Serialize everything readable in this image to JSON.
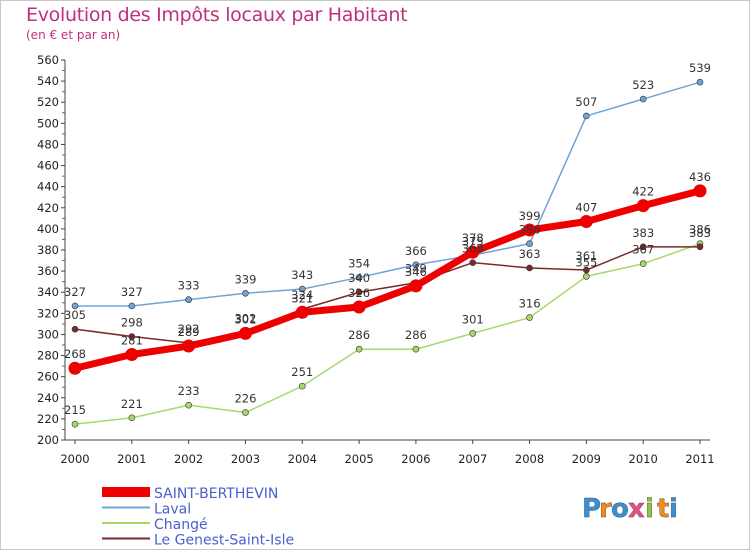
{
  "chart_data": {
    "type": "line",
    "title": "Evolution des Impôts locaux par Habitant",
    "subtitle": "(en € et par an)",
    "xlabel": "",
    "ylabel": "",
    "x": [
      "2000",
      "2001",
      "2002",
      "2003",
      "2004",
      "2005",
      "2006",
      "2007",
      "2008",
      "2009",
      "2010",
      "2011"
    ],
    "ylim": [
      200,
      560
    ],
    "yticks": [
      200,
      220,
      240,
      260,
      280,
      300,
      320,
      340,
      360,
      380,
      400,
      420,
      440,
      460,
      480,
      500,
      520,
      540,
      560
    ],
    "grid": false,
    "legend": "bottom-left",
    "series": [
      {
        "name": "SAINT-BERTHEVIN",
        "color": "#ee0000",
        "values": [
          268,
          281,
          289,
          301,
          321,
          326,
          346,
          378,
          399,
          407,
          422,
          436
        ],
        "labels": [
          "268",
          "281",
          "289",
          "301",
          "321",
          "326",
          "346",
          "378",
          "399",
          "407",
          "422",
          "436"
        ]
      },
      {
        "name": "Laval",
        "color": "#6fa3d8",
        "values": [
          327,
          327,
          333,
          339,
          343,
          354,
          366,
          375,
          386,
          507,
          523,
          539
        ],
        "labels": [
          "327",
          "327",
          "333",
          "339",
          "343",
          "354",
          "366",
          "375",
          "386",
          "507",
          "523",
          "539"
        ]
      },
      {
        "name": "Changé",
        "color": "#a6d96a",
        "values": [
          215,
          221,
          233,
          226,
          251,
          286,
          286,
          301,
          316,
          355,
          367,
          386
        ],
        "labels": [
          "215",
          "221",
          "233",
          "226",
          "251",
          "286",
          "286",
          "301",
          "316",
          "355",
          "367",
          "386"
        ]
      },
      {
        "name": "Le Genest-Saint-Isle",
        "color": "#7a2a2a",
        "values": [
          305,
          298,
          292,
          302,
          324,
          340,
          349,
          368,
          363,
          361,
          383,
          383
        ],
        "labels": [
          "305",
          "298",
          "292",
          "302",
          "324",
          "340",
          "349",
          "368",
          "363",
          "361",
          "383",
          "383"
        ]
      }
    ]
  },
  "logo": {
    "letters": [
      "P",
      "r",
      "o",
      "x",
      "i",
      "t",
      "i"
    ],
    "colors": [
      "#3a8fd4",
      "#f08a1c",
      "#3a8fd4",
      "#e84c8a",
      "#8cc63f",
      "#f08a1c",
      "#3a8fd4"
    ]
  }
}
